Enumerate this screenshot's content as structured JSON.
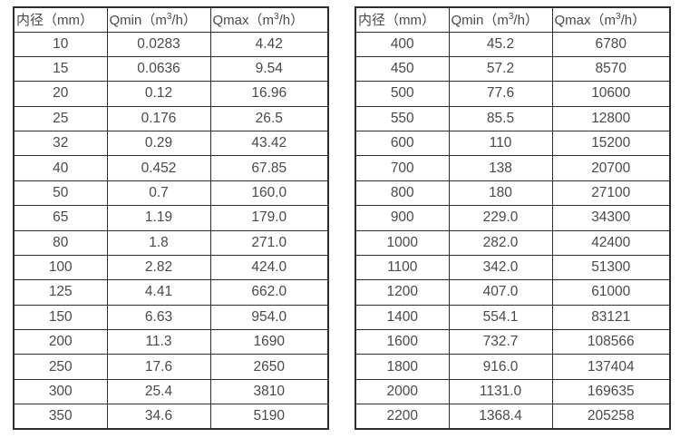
{
  "meta": {
    "description": "Two side-by-side flow rate specification tables: inner diameter (mm) vs minimum and maximum flow (m3/h)"
  },
  "colors": {
    "border": "#2e2e2e",
    "text": "#4a4a4a",
    "background": "#ffffff"
  },
  "tables": [
    {
      "name": "flow-table-small-diameters",
      "headers": [
        "内径（mm）",
        "Qmin（m³/h）",
        "Qmax（m³/h）"
      ],
      "rows": [
        [
          "10",
          "0.0283",
          "4.42"
        ],
        [
          "15",
          "0.0636",
          "9.54"
        ],
        [
          "20",
          "0.12",
          "16.96"
        ],
        [
          "25",
          "0.176",
          "26.5"
        ],
        [
          "32",
          "0.29",
          "43.42"
        ],
        [
          "40",
          "0.452",
          "67.85"
        ],
        [
          "50",
          "0.7",
          "160.0"
        ],
        [
          "65",
          "1.19",
          "179.0"
        ],
        [
          "80",
          "1.8",
          "271.0"
        ],
        [
          "100",
          "2.82",
          "424.0"
        ],
        [
          "125",
          "4.41",
          "662.0"
        ],
        [
          "150",
          "6.63",
          "954.0"
        ],
        [
          "200",
          "11.3",
          "1690"
        ],
        [
          "250",
          "17.6",
          "2650"
        ],
        [
          "300",
          "25.4",
          "3810"
        ],
        [
          "350",
          "34.6",
          "5190"
        ]
      ]
    },
    {
      "name": "flow-table-large-diameters",
      "headers": [
        "内径（mm）",
        "Qmin（m³/h）",
        "Qmax（m³/h）"
      ],
      "rows": [
        [
          "400",
          "45.2",
          "6780"
        ],
        [
          "450",
          "57.2",
          "8570"
        ],
        [
          "500",
          "77.6",
          "10600"
        ],
        [
          "550",
          "85.5",
          "12800"
        ],
        [
          "600",
          "110",
          "15200"
        ],
        [
          "700",
          "138",
          "20700"
        ],
        [
          "800",
          "180",
          "27100"
        ],
        [
          "900",
          "229.0",
          "34300"
        ],
        [
          "1000",
          "282.0",
          "42400"
        ],
        [
          "1100",
          "342.0",
          "51300"
        ],
        [
          "1200",
          "407.0",
          "61000"
        ],
        [
          "1400",
          "554.1",
          "83121"
        ],
        [
          "1600",
          "732.7",
          "108566"
        ],
        [
          "1800",
          "916.0",
          "137404"
        ],
        [
          "2000",
          "1131.0",
          "169635"
        ],
        [
          "2200",
          "1368.4",
          "205258"
        ]
      ]
    }
  ],
  "chart_data": {
    "type": "table",
    "title": "",
    "tables": [
      {
        "columns": [
          "内径（mm）",
          "Qmin（m³/h）",
          "Qmax（m³/h）"
        ],
        "inner_diameter_mm": [
          10,
          15,
          20,
          25,
          32,
          40,
          50,
          65,
          80,
          100,
          125,
          150,
          200,
          250,
          300,
          350
        ],
        "qmin_m3h": [
          0.0283,
          0.0636,
          0.12,
          0.176,
          0.29,
          0.452,
          0.7,
          1.19,
          1.8,
          2.82,
          4.41,
          6.63,
          11.3,
          17.6,
          25.4,
          34.6
        ],
        "qmax_m3h": [
          4.42,
          9.54,
          16.96,
          26.5,
          43.42,
          67.85,
          160.0,
          179.0,
          271.0,
          424.0,
          662.0,
          954.0,
          1690,
          2650,
          3810,
          5190
        ]
      },
      {
        "columns": [
          "内径（mm）",
          "Qmin（m³/h）",
          "Qmax（m³/h）"
        ],
        "inner_diameter_mm": [
          400,
          450,
          500,
          550,
          600,
          700,
          800,
          900,
          1000,
          1100,
          1200,
          1400,
          1600,
          1800,
          2000,
          2200
        ],
        "qmin_m3h": [
          45.2,
          57.2,
          77.6,
          85.5,
          110,
          138,
          180,
          229.0,
          282.0,
          342.0,
          407.0,
          554.1,
          732.7,
          916.0,
          1131.0,
          1368.4
        ],
        "qmax_m3h": [
          6780,
          8570,
          10600,
          12800,
          15200,
          20700,
          27100,
          34300,
          42400,
          51300,
          61000,
          83121,
          108566,
          137404,
          169635,
          205258
        ]
      }
    ]
  }
}
